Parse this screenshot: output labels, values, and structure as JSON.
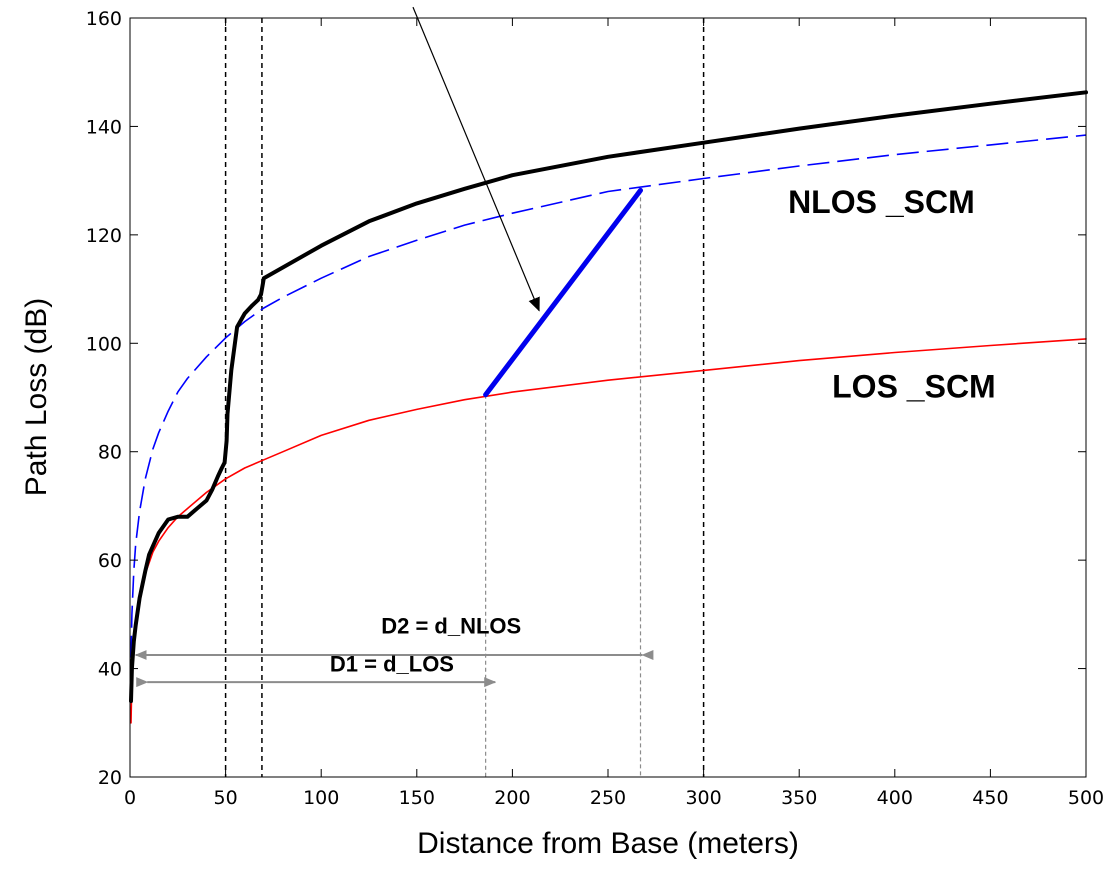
{
  "chart_data": {
    "type": "line",
    "xlabel": "Distance from Base (meters)",
    "ylabel": "Path Loss (dB)",
    "xlim": [
      0,
      500
    ],
    "ylim": [
      20,
      160
    ],
    "xticks": [
      0,
      50,
      100,
      150,
      200,
      250,
      300,
      350,
      400,
      450,
      500
    ],
    "yticks": [
      20,
      40,
      60,
      80,
      100,
      120,
      140,
      160
    ],
    "grid": false,
    "legend": "none",
    "vlines_black_dashed": [
      50,
      69,
      300
    ],
    "vlines_gray_dashed": [
      [
        186,
        20,
        90.5
      ],
      [
        267,
        20,
        128.2
      ]
    ],
    "series": [
      {
        "color": "#000000",
        "style": "solid-thick",
        "x": [
          0.5,
          1,
          2,
          3,
          5,
          8,
          10,
          15,
          20,
          25,
          30,
          35,
          40,
          43,
          46,
          48,
          49.5,
          50.5,
          51,
          53,
          56,
          60,
          64,
          67,
          68.5,
          69.5,
          70,
          80,
          100,
          125,
          150,
          175,
          200,
          250,
          300,
          350,
          400,
          450,
          500
        ],
        "y": [
          34,
          40,
          45,
          48,
          53,
          58,
          61,
          65,
          67.5,
          68,
          68,
          69.5,
          71,
          73,
          75.5,
          77,
          78,
          82,
          87,
          95,
          103,
          105.5,
          107,
          108,
          109,
          111,
          112,
          114,
          118,
          122.5,
          125.8,
          128.5,
          131,
          134.4,
          137,
          139.6,
          142,
          144.2,
          146.3
        ]
      },
      {
        "color": "#0000ff",
        "style": "dashed",
        "x": [
          0.5,
          1,
          2,
          3,
          5,
          8,
          12,
          15,
          20,
          25,
          30,
          40,
          50,
          60,
          70,
          80,
          100,
          125,
          150,
          175,
          200,
          250,
          300,
          350,
          400,
          450,
          500
        ],
        "y": [
          42,
          50,
          58,
          63,
          69,
          75,
          80.5,
          83.5,
          87.5,
          91,
          93.5,
          97.5,
          101,
          104,
          106.5,
          108.5,
          112,
          116,
          119,
          121.8,
          124,
          128,
          130.4,
          132.7,
          134.8,
          136.6,
          138.4
        ]
      },
      {
        "color": "#ff0000",
        "style": "solid",
        "x": [
          0.5,
          1,
          2,
          3,
          5,
          8,
          12,
          15,
          20,
          25,
          30,
          40,
          50,
          60,
          70,
          80,
          100,
          125,
          150,
          175,
          200,
          250,
          300,
          350,
          400,
          450,
          500
        ],
        "y": [
          30,
          38,
          45,
          49,
          53,
          57.5,
          61.5,
          63.5,
          66,
          68,
          69.5,
          72.5,
          75,
          77,
          78.5,
          80,
          83,
          85.8,
          87.8,
          89.6,
          91,
          93.2,
          95,
          96.8,
          98.3,
          99.6,
          100.8
        ]
      },
      {
        "color": "#0000ee",
        "style": "solid-heavy",
        "x": [
          186,
          267
        ],
        "y": [
          90.5,
          128.2
        ]
      }
    ],
    "annotations": [
      {
        "text": "NLOS _SCM",
        "x": 393,
        "y": 124
      },
      {
        "text": "LOS _SCM",
        "x": 410,
        "y": 90
      },
      {
        "text": "D2 = d_NLOS",
        "x": 168,
        "y": 46.5
      },
      {
        "text": "D1 = d_LOS",
        "x": 137,
        "y": 39.5
      }
    ],
    "arrows_gray": [
      {
        "x_from": 268,
        "x_to": 3,
        "y": 42.5
      },
      {
        "x_from": 9,
        "x_to": 191,
        "y": 37.5
      }
    ],
    "pointer_arrow": {
      "from": [
        148,
        162
      ],
      "to": [
        214,
        106
      ]
    }
  }
}
